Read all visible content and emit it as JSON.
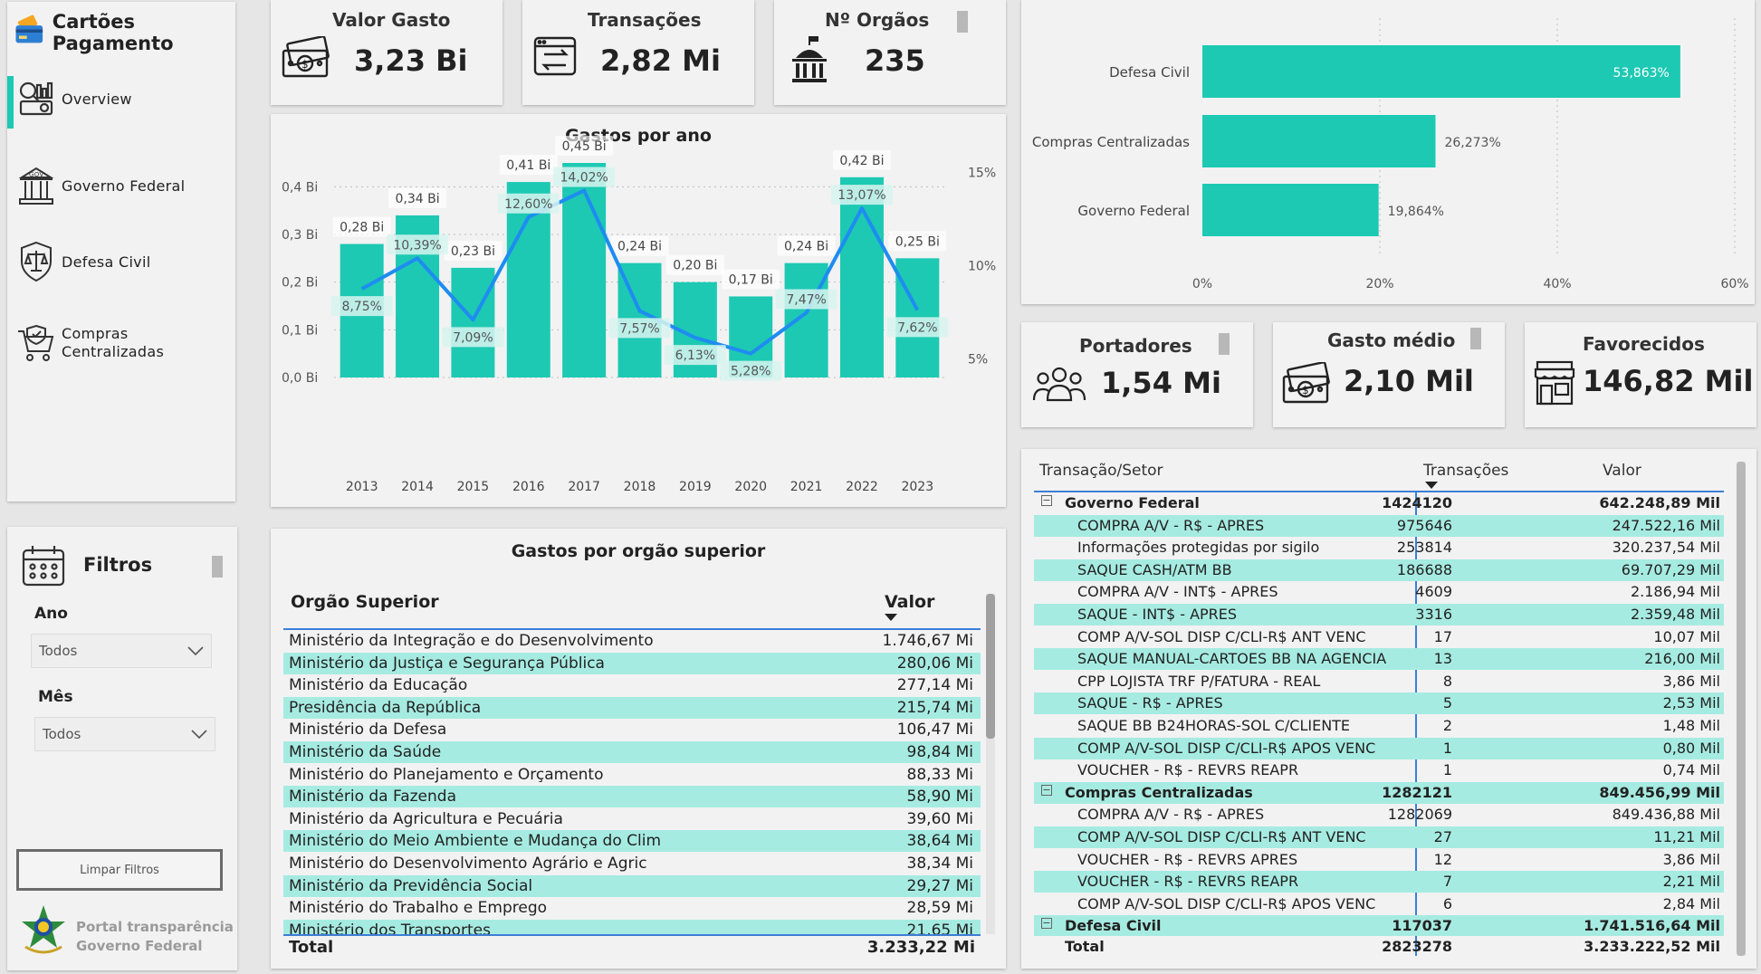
{
  "app": {
    "title": "Cartões Pagamento"
  },
  "nav": {
    "items": [
      {
        "label": "Overview",
        "icon": "overview-icon",
        "active": true
      },
      {
        "label": "Governo Federal",
        "icon": "government-building-icon",
        "active": false
      },
      {
        "label": "Defesa Civil",
        "icon": "shield-scales-icon",
        "active": false
      },
      {
        "label": "Compras\nCentralizadas",
        "icon": "shopping-cart-icon",
        "active": false
      }
    ]
  },
  "filters": {
    "title": "Filtros",
    "ano_label": "Ano",
    "ano_value": "Todos",
    "mes_label": "Mês",
    "mes_value": "Todos",
    "clear_label": "Limpar Filtros",
    "portal_line1": "Portal transparência",
    "portal_line2": "Governo Federal"
  },
  "kpis": {
    "valor_gasto": {
      "title": "Valor Gasto",
      "value": "3,23 Bi"
    },
    "transacoes": {
      "title": "Transações",
      "value": "2,82 Mi"
    },
    "orgaos": {
      "title": "Nº Orgãos",
      "value": "235"
    },
    "portadores": {
      "title": "Portadores",
      "value": "1,54 Mi"
    },
    "gasto_medio": {
      "title": "Gasto médio",
      "value": "2,10 Mil"
    },
    "favorecidos": {
      "title": "Favorecidos",
      "value": "146,82 Mil"
    }
  },
  "colors": {
    "teal": "#1dc9b3",
    "teal_light": "#a6ebe1",
    "line_blue": "#1e8cf0",
    "card_bg": "#f2f2f2"
  },
  "chart_data": [
    {
      "type": "bar",
      "title": "Gastos por ano",
      "categories": [
        "2013",
        "2014",
        "2015",
        "2016",
        "2017",
        "2018",
        "2019",
        "2020",
        "2021",
        "2022",
        "2023"
      ],
      "series": [
        {
          "values": [
            0.28,
            0.34,
            0.23,
            0.41,
            0.45,
            0.24,
            0.2,
            0.17,
            0.24,
            0.42,
            0.25
          ],
          "labels": [
            "0,28 Bi",
            "0,34 Bi",
            "0,23 Bi",
            "0,41 Bi",
            "0,45 Bi",
            "0,24 Bi",
            "0,20 Bi",
            "0,17 Bi",
            "0,24 Bi",
            "0,42 Bi",
            "0,25 Bi"
          ],
          "axis": "left"
        },
        {
          "values": [
            8.75,
            10.39,
            7.09,
            12.6,
            14.02,
            7.57,
            6.13,
            5.28,
            7.47,
            13.07,
            7.62
          ],
          "labels": [
            "8,75%",
            "10,39%",
            "7,09%",
            "12,60%",
            "14,02%",
            "7,57%",
            "6,13%",
            "5,28%",
            "7,47%",
            "13,07%",
            "7,62%"
          ],
          "axis": "right",
          "chart": "line"
        }
      ],
      "yticks_left": [
        "0,0 Bi",
        "0,1 Bi",
        "0,2 Bi",
        "0,3 Bi",
        "0,4 Bi"
      ],
      "ylim_left": [
        0,
        0.45
      ],
      "yticks_right": [
        "5%",
        "10%",
        "15%"
      ],
      "ylim_right": [
        4,
        15.5
      ],
      "grid": true
    },
    {
      "type": "bar",
      "orientation": "horizontal",
      "categories": [
        "Defesa Civil",
        "Compras Centralizadas",
        "Governo Federal"
      ],
      "values": [
        53.863,
        26.273,
        19.864
      ],
      "labels": [
        "53,863%",
        "26,273%",
        "19,864%"
      ],
      "xticks": [
        "0%",
        "20%",
        "40%",
        "60%"
      ],
      "xlim": [
        0,
        60
      ],
      "grid": true
    }
  ],
  "orgao_table": {
    "title": "Gastos por orgão superior",
    "col_name": "Orgão Superior",
    "col_value": "Valor",
    "rows": [
      {
        "name": "Ministério da Integração e do Desenvolvimento",
        "value": "1.746,67 Mi"
      },
      {
        "name": "Ministério da Justiça e Segurança Pública",
        "value": "280,06 Mi"
      },
      {
        "name": "Ministério da Educação",
        "value": "277,14 Mi"
      },
      {
        "name": "Presidência da República",
        "value": "215,74 Mi"
      },
      {
        "name": "Ministério da Defesa",
        "value": "106,47 Mi"
      },
      {
        "name": "Ministério da Saúde",
        "value": "98,84 Mi"
      },
      {
        "name": "Ministério do Planejamento e Orçamento",
        "value": "88,33 Mi"
      },
      {
        "name": "Ministério da Fazenda",
        "value": "58,90 Mi"
      },
      {
        "name": "Ministério da Agricultura e Pecuária",
        "value": "39,60 Mi"
      },
      {
        "name": "Ministério do Meio Ambiente e Mudança do Clim",
        "value": "38,64 Mi"
      },
      {
        "name": "Ministério do Desenvolvimento Agrário e Agric",
        "value": "38,34 Mi"
      },
      {
        "name": "Ministério da Previdência Social",
        "value": "29,27 Mi"
      },
      {
        "name": "Ministério do Trabalho e Emprego",
        "value": "28,59 Mi"
      },
      {
        "name": "Ministério dos Transportes",
        "value": "21,65 Mi"
      }
    ],
    "total_label": "Total",
    "total_value": "3.233,22 Mi"
  },
  "matrix": {
    "col_sector": "Transação/Setor",
    "col_trans": "Transações",
    "col_value": "Valor",
    "rows": [
      {
        "type": "group",
        "name": "Governo Federal",
        "trans": "1424120",
        "value": "642.248,89 Mil"
      },
      {
        "type": "item",
        "name": "COMPRA A/V - R$ - APRES",
        "trans": "975646",
        "value": "247.522,16 Mil"
      },
      {
        "type": "item",
        "name": "Informações protegidas por sigilo",
        "trans": "253814",
        "value": "320.237,54 Mil"
      },
      {
        "type": "item",
        "name": "SAQUE CASH/ATM BB",
        "trans": "186688",
        "value": "69.707,29 Mil"
      },
      {
        "type": "item",
        "name": "COMPRA A/V - INT$ - APRES",
        "trans": "4609",
        "value": "2.186,94 Mil"
      },
      {
        "type": "item",
        "name": "SAQUE - INT$ - APRES",
        "trans": "3316",
        "value": "2.359,48 Mil"
      },
      {
        "type": "item",
        "name": "COMP A/V-SOL DISP C/CLI-R$ ANT VENC",
        "trans": "17",
        "value": "10,07 Mil"
      },
      {
        "type": "item",
        "name": "SAQUE MANUAL-CARTOES BB NA AGENCIA",
        "trans": "13",
        "value": "216,00 Mil"
      },
      {
        "type": "item",
        "name": "CPP LOJISTA TRF P/FATURA - REAL",
        "trans": "8",
        "value": "3,86 Mil"
      },
      {
        "type": "item",
        "name": "SAQUE - R$ - APRES",
        "trans": "5",
        "value": "2,53 Mil"
      },
      {
        "type": "item",
        "name": "SAQUE BB B24HORAS-SOL C/CLIENTE",
        "trans": "2",
        "value": "1,48 Mil"
      },
      {
        "type": "item",
        "name": "COMP A/V-SOL DISP C/CLI-R$ APOS VENC",
        "trans": "1",
        "value": "0,80 Mil"
      },
      {
        "type": "item",
        "name": "VOUCHER - R$ - REVRS REAPR",
        "trans": "1",
        "value": "0,74 Mil"
      },
      {
        "type": "group",
        "name": "Compras Centralizadas",
        "trans": "1282121",
        "value": "849.456,99 Mil"
      },
      {
        "type": "item",
        "name": "COMPRA A/V - R$ - APRES",
        "trans": "1282069",
        "value": "849.436,88 Mil"
      },
      {
        "type": "item",
        "name": "COMP A/V-SOL DISP C/CLI-R$ ANT VENC",
        "trans": "27",
        "value": "11,21 Mil"
      },
      {
        "type": "item",
        "name": "VOUCHER - R$ - REVRS APRES",
        "trans": "12",
        "value": "3,86 Mil"
      },
      {
        "type": "item",
        "name": "VOUCHER - R$ - REVRS REAPR",
        "trans": "7",
        "value": "2,21 Mil"
      },
      {
        "type": "item",
        "name": "COMP A/V-SOL DISP C/CLI-R$ APOS VENC",
        "trans": "6",
        "value": "2,84 Mil"
      },
      {
        "type": "group",
        "name": "Defesa Civil",
        "trans": "117037",
        "value": "1.741.516,64 Mil"
      }
    ],
    "total_label": "Total",
    "total_trans": "2823278",
    "total_value": "3.233.222,52 Mil"
  }
}
